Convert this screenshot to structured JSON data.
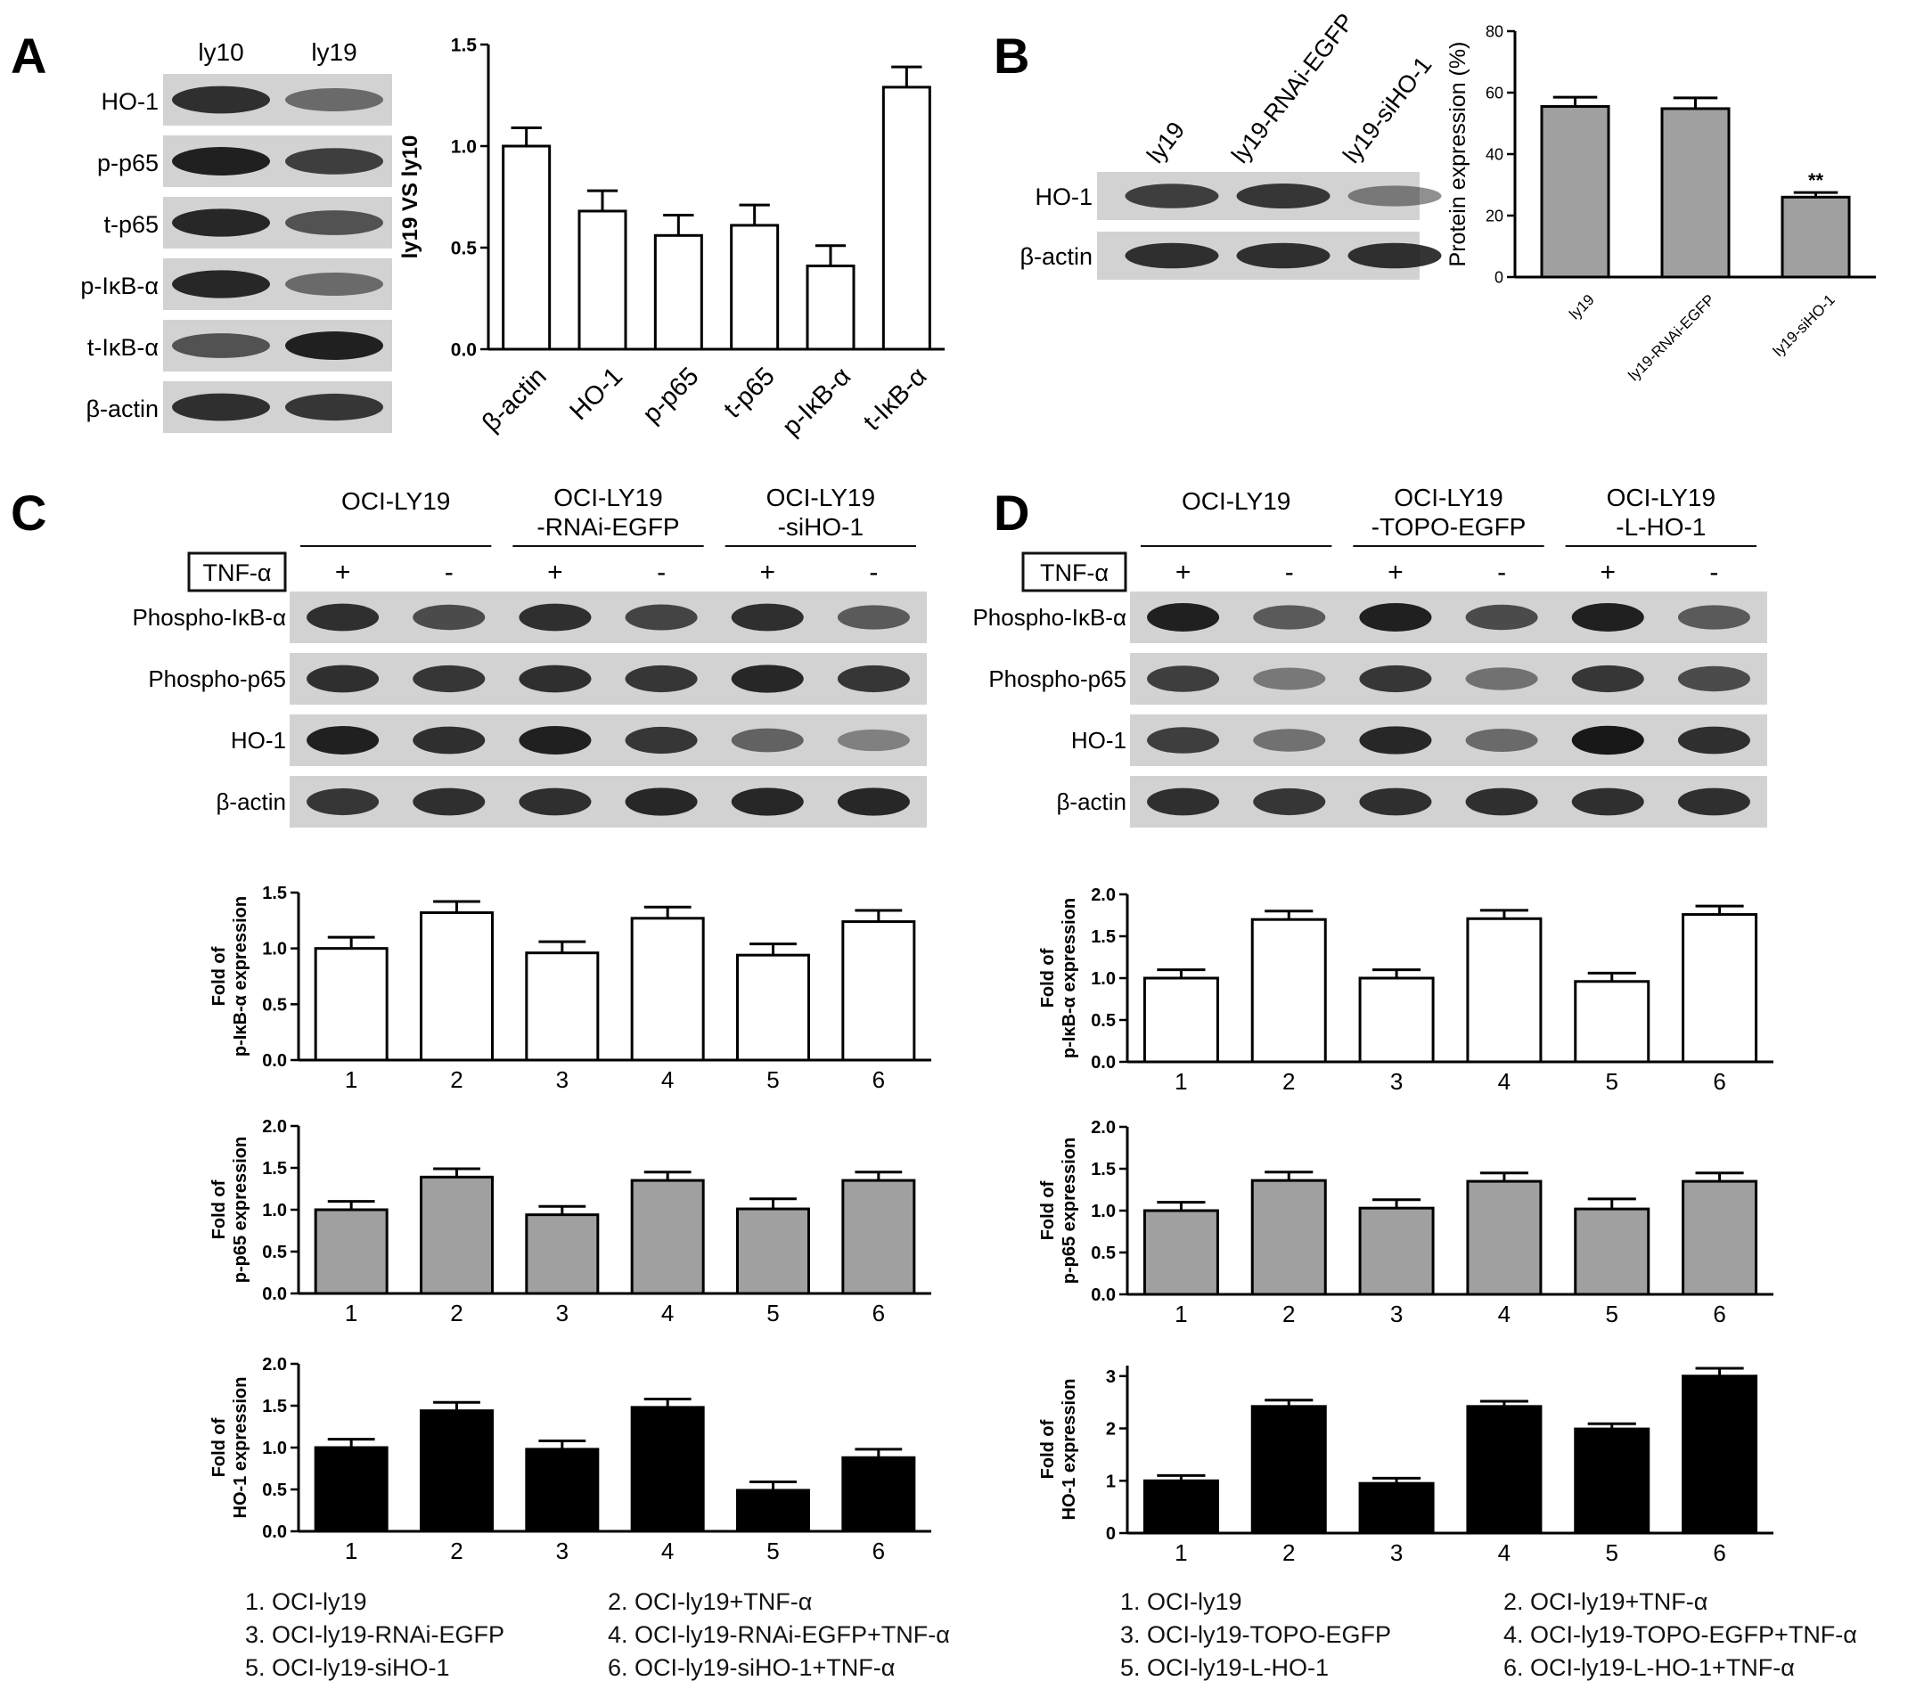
{
  "panels": {
    "A": {
      "letter": "A",
      "blot": {
        "lanes": [
          "ly10",
          "ly19"
        ],
        "rows": [
          {
            "label": "HO-1",
            "bands": [
              0.85,
              0.45
            ]
          },
          {
            "label": "p-p65",
            "bands": [
              0.95,
              0.75
            ]
          },
          {
            "label": "t-p65",
            "bands": [
              0.9,
              0.6
            ]
          },
          {
            "label": "p-IκB-α",
            "bands": [
              0.9,
              0.45
            ]
          },
          {
            "label": "t-IκB-α",
            "bands": [
              0.6,
              0.95
            ]
          },
          {
            "label": "β-actin",
            "bands": [
              0.85,
              0.8
            ]
          }
        ]
      }
    },
    "B": {
      "letter": "B",
      "blot": {
        "lanes": [
          "ly19",
          "ly19-RNAi-EGFP",
          "ly19-siHO-1"
        ],
        "rows": [
          {
            "label": "HO-1",
            "bands": [
              0.75,
              0.8,
              0.35
            ]
          },
          {
            "label": "β-actin",
            "bands": [
              0.85,
              0.85,
              0.85
            ]
          }
        ]
      }
    },
    "C": {
      "letter": "C",
      "blot": {
        "groups": [
          "OCI-LY19",
          "OCI-LY19\n-RNAi-EGFP",
          "OCI-LY19\n-siHO-1"
        ],
        "treatment_label": "TNF-α",
        "signs": [
          "+",
          "-",
          "+",
          "-",
          "+",
          "-"
        ],
        "rows": [
          {
            "label": "Phospho-IκB-α",
            "bands": [
              0.85,
              0.65,
              0.85,
              0.7,
              0.85,
              0.55
            ]
          },
          {
            "label": "Phospho-p65",
            "bands": [
              0.85,
              0.8,
              0.85,
              0.8,
              0.9,
              0.8
            ]
          },
          {
            "label": "HO-1",
            "bands": [
              0.95,
              0.85,
              0.95,
              0.8,
              0.5,
              0.3
            ]
          },
          {
            "label": "β-actin",
            "bands": [
              0.8,
              0.85,
              0.85,
              0.9,
              0.9,
              0.9
            ]
          }
        ]
      },
      "legend": [
        "1. OCI-ly19",
        "2. OCI-ly19+TNF-α",
        "3. OCI-ly19-RNAi-EGFP",
        "4. OCI-ly19-RNAi-EGFP+TNF-α",
        "5. OCI-ly19-siHO-1",
        "6. OCI-ly19-siHO-1+TNF-α"
      ]
    },
    "D": {
      "letter": "D",
      "blot": {
        "groups": [
          "OCI-LY19",
          "OCI-LY19\n-TOPO-EGFP",
          "OCI-LY19\n-L-HO-1"
        ],
        "treatment_label": "TNF-α",
        "signs": [
          "+",
          "-",
          "+",
          "-",
          "+",
          "-"
        ],
        "rows": [
          {
            "label": "Phospho-IκB-α",
            "bands": [
              0.95,
              0.55,
              0.95,
              0.65,
              0.95,
              0.55
            ]
          },
          {
            "label": "Phospho-p65",
            "bands": [
              0.75,
              0.35,
              0.8,
              0.4,
              0.8,
              0.65
            ]
          },
          {
            "label": "HO-1",
            "bands": [
              0.75,
              0.4,
              0.9,
              0.45,
              1.0,
              0.85
            ]
          },
          {
            "label": "β-actin",
            "bands": [
              0.85,
              0.8,
              0.85,
              0.85,
              0.85,
              0.85
            ]
          }
        ]
      },
      "legend": [
        "1. OCI-ly19",
        "2. OCI-ly19+TNF-α",
        "3. OCI-ly19-TOPO-EGFP",
        "4. OCI-ly19-TOPO-EGFP+TNF-α",
        "5. OCI-ly19-L-HO-1",
        "6. OCI-ly19-L-HO-1+TNF-α"
      ]
    }
  },
  "chart_data": [
    {
      "id": "A",
      "type": "bar",
      "categories": [
        "β-actin",
        "HO-1",
        "p-p65",
        "t-p65",
        "p-IκB-α",
        "t-IκB-α"
      ],
      "values": [
        1.0,
        0.68,
        0.56,
        0.61,
        0.41,
        1.29
      ],
      "errors": [
        0.09,
        0.1,
        0.1,
        0.1,
        0.1,
        0.1
      ],
      "ylabel": "ly19 VS ly10",
      "ylim": [
        0,
        1.5
      ],
      "yticks": [
        "0.0",
        "0.5",
        "1.0",
        "1.5"
      ],
      "bar_color": "#ffffff",
      "grid": false
    },
    {
      "id": "B",
      "type": "bar",
      "categories": [
        "ly19",
        "ly19-RNAi-EGFP",
        "ly19-siHO-1"
      ],
      "values": [
        55.5,
        54.8,
        26
      ],
      "errors": [
        3,
        3.5,
        1.5
      ],
      "annotations": [
        "",
        "",
        "**"
      ],
      "ylabel": "Protein expression (%)",
      "ylim": [
        0,
        80
      ],
      "yticks": [
        "0",
        "20",
        "40",
        "60",
        "80"
      ],
      "bar_color": "#a0a0a0",
      "grid": false
    },
    {
      "id": "C1",
      "type": "bar",
      "categories": [
        "1",
        "2",
        "3",
        "4",
        "5",
        "6"
      ],
      "values": [
        1.0,
        1.32,
        0.96,
        1.27,
        0.94,
        1.24
      ],
      "errors": [
        0.1,
        0.1,
        0.1,
        0.1,
        0.1,
        0.1
      ],
      "ylabel": "Fold of\np-IκB-α expression",
      "ylim": [
        0,
        1.5
      ],
      "yticks": [
        "0.0",
        "0.5",
        "1.0",
        "1.5"
      ],
      "bar_color": "#ffffff",
      "grid": false
    },
    {
      "id": "C2",
      "type": "bar",
      "categories": [
        "1",
        "2",
        "3",
        "4",
        "5",
        "6"
      ],
      "values": [
        1.0,
        1.39,
        0.94,
        1.35,
        1.01,
        1.35
      ],
      "errors": [
        0.1,
        0.1,
        0.1,
        0.1,
        0.12,
        0.1
      ],
      "ylabel": "Fold of\np-p65 expression",
      "ylim": [
        0,
        2.0
      ],
      "yticks": [
        "0.0",
        "0.5",
        "1.0",
        "1.5",
        "2.0"
      ],
      "bar_color": "#a0a0a0",
      "grid": false
    },
    {
      "id": "C3",
      "type": "bar",
      "categories": [
        "1",
        "2",
        "3",
        "4",
        "5",
        "6"
      ],
      "values": [
        1.0,
        1.44,
        0.98,
        1.48,
        0.49,
        0.88
      ],
      "errors": [
        0.1,
        0.1,
        0.1,
        0.1,
        0.1,
        0.1
      ],
      "ylabel": "Fold of\nHO-1 expression",
      "ylim": [
        0,
        2.0
      ],
      "yticks": [
        "0.0",
        "0.5",
        "1.0",
        "1.5",
        "2.0"
      ],
      "bar_color": "#000000",
      "grid": false
    },
    {
      "id": "D1",
      "type": "bar",
      "categories": [
        "1",
        "2",
        "3",
        "4",
        "5",
        "6"
      ],
      "values": [
        1.0,
        1.7,
        1.0,
        1.71,
        0.96,
        1.76
      ],
      "errors": [
        0.1,
        0.1,
        0.1,
        0.1,
        0.1,
        0.1
      ],
      "ylabel": "Fold of\np-IκB-α expression",
      "ylim": [
        0,
        2.0
      ],
      "yticks": [
        "0.0",
        "0.5",
        "1.0",
        "1.5",
        "2.0"
      ],
      "bar_color": "#ffffff",
      "grid": false
    },
    {
      "id": "D2",
      "type": "bar",
      "categories": [
        "1",
        "2",
        "3",
        "4",
        "5",
        "6"
      ],
      "values": [
        1.0,
        1.36,
        1.03,
        1.35,
        1.02,
        1.35
      ],
      "errors": [
        0.1,
        0.1,
        0.1,
        0.1,
        0.12,
        0.1
      ],
      "ylabel": "Fold of\np-p65 expression",
      "ylim": [
        0,
        2.0
      ],
      "yticks": [
        "0.0",
        "0.5",
        "1.0",
        "1.5",
        "2.0"
      ],
      "bar_color": "#a0a0a0",
      "grid": false
    },
    {
      "id": "D3",
      "type": "bar",
      "categories": [
        "1",
        "2",
        "3",
        "4",
        "5",
        "6"
      ],
      "values": [
        1.0,
        2.42,
        0.95,
        2.42,
        1.99,
        3.0
      ],
      "errors": [
        0.1,
        0.12,
        0.1,
        0.1,
        0.1,
        0.15
      ],
      "ylabel": "Fold of\nHO-1 expression",
      "ylim": [
        0,
        3.2
      ],
      "yticks": [
        "0",
        "1",
        "2",
        "3"
      ],
      "bar_color": "#000000",
      "grid": false
    }
  ]
}
